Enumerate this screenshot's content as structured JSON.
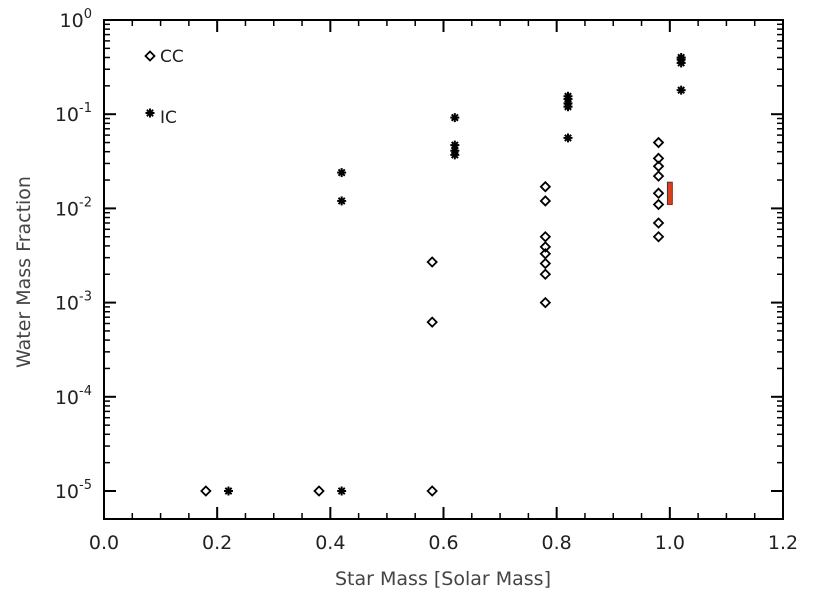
{
  "chart_data": {
    "type": "scatter",
    "xlabel": "Star Mass [Solar Mass]",
    "ylabel": "Water Mass Fraction",
    "xlim": [
      0.0,
      1.2
    ],
    "ylim": [
      1e-05,
      1
    ],
    "yscale": "log",
    "x_ticks": [
      "0.0",
      "0.2",
      "0.4",
      "0.6",
      "0.8",
      "1.0",
      "1.2"
    ],
    "y_ticks": [
      {
        "base": "10",
        "exp": "0",
        "value": 1
      },
      {
        "base": "10",
        "exp": "-1",
        "value": 0.1
      },
      {
        "base": "10",
        "exp": "-2",
        "value": 0.01
      },
      {
        "base": "10",
        "exp": "-3",
        "value": 0.001
      },
      {
        "base": "10",
        "exp": "-4",
        "value": 0.0001
      },
      {
        "base": "10",
        "exp": "-5",
        "value": 1e-05
      }
    ],
    "legend": {
      "placement": "top-left",
      "entries": [
        {
          "label": "CC",
          "marker": "diamond"
        },
        {
          "label": "IC",
          "marker": "asterisk"
        }
      ]
    },
    "series": [
      {
        "name": "CC",
        "marker": "diamond",
        "points": [
          {
            "x": 0.18,
            "y": 1e-05
          },
          {
            "x": 0.38,
            "y": 1e-05
          },
          {
            "x": 0.58,
            "y": 1e-05
          },
          {
            "x": 0.58,
            "y": 0.00062
          },
          {
            "x": 0.58,
            "y": 0.0027
          },
          {
            "x": 0.78,
            "y": 0.001
          },
          {
            "x": 0.78,
            "y": 0.002
          },
          {
            "x": 0.78,
            "y": 0.0026
          },
          {
            "x": 0.78,
            "y": 0.0033
          },
          {
            "x": 0.78,
            "y": 0.0039
          },
          {
            "x": 0.78,
            "y": 0.005
          },
          {
            "x": 0.78,
            "y": 0.012
          },
          {
            "x": 0.78,
            "y": 0.017
          },
          {
            "x": 0.98,
            "y": 0.005
          },
          {
            "x": 0.98,
            "y": 0.007
          },
          {
            "x": 0.98,
            "y": 0.011
          },
          {
            "x": 0.98,
            "y": 0.0145
          },
          {
            "x": 0.98,
            "y": 0.022
          },
          {
            "x": 0.98,
            "y": 0.028
          },
          {
            "x": 0.98,
            "y": 0.034
          },
          {
            "x": 0.98,
            "y": 0.05
          }
        ]
      },
      {
        "name": "IC",
        "marker": "asterisk",
        "points": [
          {
            "x": 0.22,
            "y": 1e-05
          },
          {
            "x": 0.42,
            "y": 1e-05
          },
          {
            "x": 0.42,
            "y": 0.012
          },
          {
            "x": 0.42,
            "y": 0.024
          },
          {
            "x": 0.62,
            "y": 0.037
          },
          {
            "x": 0.62,
            "y": 0.041
          },
          {
            "x": 0.62,
            "y": 0.047
          },
          {
            "x": 0.62,
            "y": 0.092
          },
          {
            "x": 0.82,
            "y": 0.056
          },
          {
            "x": 0.82,
            "y": 0.12
          },
          {
            "x": 0.82,
            "y": 0.13
          },
          {
            "x": 0.82,
            "y": 0.145
          },
          {
            "x": 0.82,
            "y": 0.155
          },
          {
            "x": 1.02,
            "y": 0.18
          },
          {
            "x": 1.02,
            "y": 0.35
          },
          {
            "x": 1.02,
            "y": 0.38
          },
          {
            "x": 1.02,
            "y": 0.4
          }
        ]
      }
    ],
    "annotations": [
      {
        "kind": "bar",
        "color": "#d9401f",
        "x": 1.0,
        "y_low": 0.011,
        "y_high": 0.019
      }
    ]
  }
}
